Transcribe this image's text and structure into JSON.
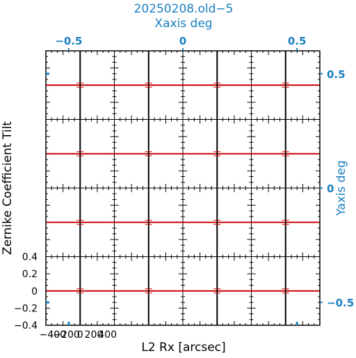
{
  "chart_data": {
    "type": "line",
    "title": "20250208.old−5",
    "top_axis": {
      "label": "Xaxis deg",
      "ticks": [
        {
          "value": -0.5,
          "label": "−0.5"
        },
        {
          "value": 0,
          "label": "0"
        },
        {
          "value": 0.5,
          "label": "0.5"
        }
      ],
      "range": [
        -0.6,
        0.6
      ]
    },
    "right_axis": {
      "label": "Yaxis deg",
      "ticks": [
        {
          "value": 0.5,
          "label": "0.5"
        },
        {
          "value": 0,
          "label": "0"
        },
        {
          "value": -0.5,
          "label": "−0.5"
        }
      ],
      "range": [
        -0.6,
        0.6
      ]
    },
    "xlabel": "L2 Rx [arcsec]",
    "ylabel": "Zernike Coefficient Tilt",
    "panel_xticks": [
      {
        "value": -400,
        "label": "−400"
      },
      {
        "value": -200,
        "label": "−200"
      },
      {
        "value": 0,
        "label": "0"
      },
      {
        "value": 200,
        "label": "200"
      },
      {
        "value": 400,
        "label": "400"
      }
    ],
    "panel_xlim": [
      -500,
      500
    ],
    "panel_yticks": [
      {
        "value": 0.4,
        "label": "0.4"
      },
      {
        "value": 0.2,
        "label": "0.2"
      },
      {
        "value": 0,
        "label": "0"
      },
      {
        "value": -0.2,
        "label": "−0.2"
      },
      {
        "value": -0.4,
        "label": "−0.4"
      }
    ],
    "panel_ylim": [
      -0.4,
      0.4
    ],
    "grid": {
      "rows": 4,
      "cols": 4
    },
    "series": [
      {
        "color": "#cc0000",
        "x": [
          -500,
          500
        ],
        "y": [
          0,
          0
        ]
      }
    ],
    "vline_color": "#000000",
    "colors": {
      "axis_labels": "#1a7fc0",
      "frame": "#000000",
      "series": "#cc0000"
    }
  }
}
